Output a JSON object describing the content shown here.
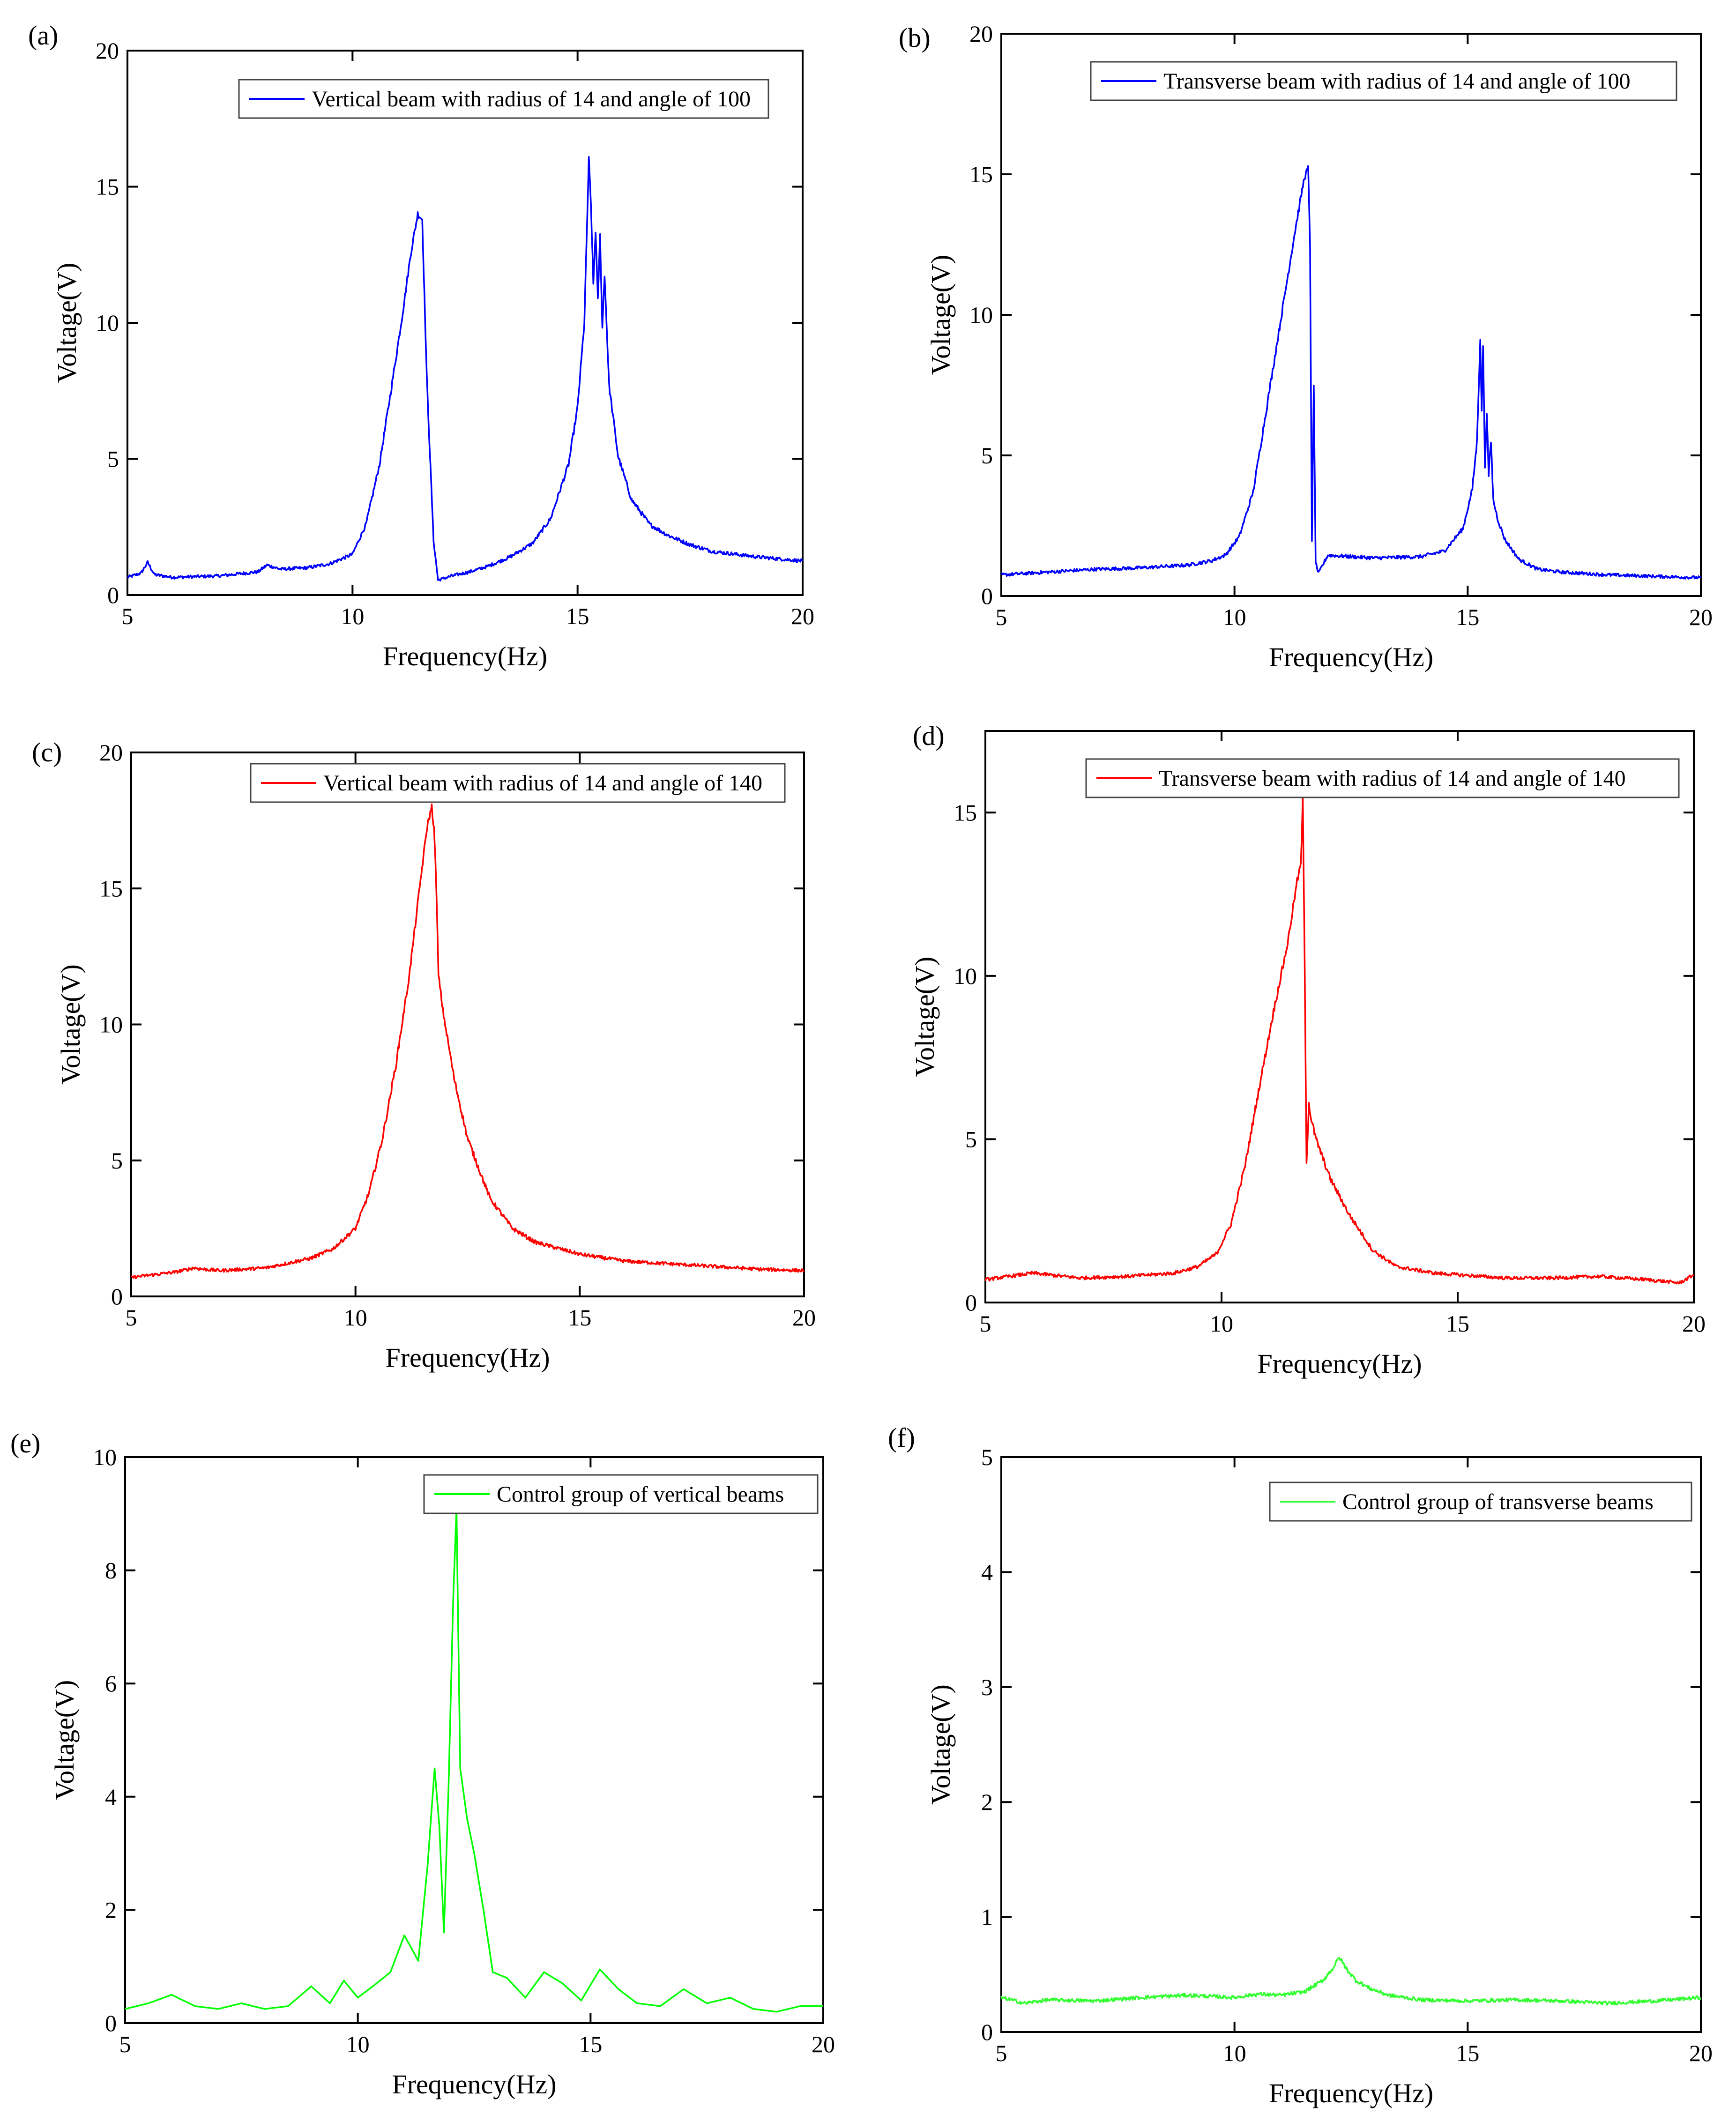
{
  "chart_data": [
    {
      "type": "line",
      "panel_label": "(a)",
      "legend": "Vertical beam with radius of 14 and angle of 100",
      "color": "#0000ff",
      "xlabel": "Frequency(Hz)",
      "ylabel": "Voltage(V)",
      "xlim": [
        5,
        20
      ],
      "ylim": [
        0,
        20
      ],
      "xticks": [
        "5",
        "10",
        "15",
        "20"
      ],
      "yticks": [
        "0",
        "5",
        "10",
        "15",
        "20"
      ],
      "series": [
        {
          "name": "Vertical beam with radius of 14 and angle of 100",
          "x": [
            5,
            5.3,
            5.45,
            5.6,
            6,
            7,
            7.9,
            8.1,
            8.4,
            9,
            9.5,
            10,
            10.3,
            10.6,
            10.9,
            11.1,
            11.3,
            11.45,
            11.55,
            11.65,
            11.8,
            11.9,
            12.2,
            12.6,
            13,
            13.5,
            14,
            14.4,
            14.8,
            15,
            15.15,
            15.25,
            15.3,
            15.35,
            15.4,
            15.45,
            15.5,
            15.55,
            15.6,
            15.7,
            15.9,
            16.2,
            16.6,
            17,
            17.5,
            18,
            19,
            20
          ],
          "y": [
            0.65,
            0.8,
            1.2,
            0.75,
            0.65,
            0.7,
            0.85,
            1.1,
            0.95,
            1.0,
            1.15,
            1.5,
            2.6,
            4.8,
            8.0,
            10.2,
            12.6,
            14.0,
            13.8,
            8.0,
            2.0,
            0.55,
            0.7,
            0.85,
            1.05,
            1.4,
            1.9,
            2.8,
            4.8,
            6.9,
            10.0,
            16.0,
            14.2,
            11.4,
            13.4,
            10.8,
            13.2,
            9.8,
            11.8,
            7.7,
            5.1,
            3.5,
            2.6,
            2.2,
            1.85,
            1.6,
            1.4,
            1.25
          ]
        }
      ]
    },
    {
      "type": "line",
      "panel_label": "(b)",
      "legend": "Transverse beam with radius of 14 and angle of 100",
      "color": "#0000ff",
      "xlabel": "Frequency(Hz)",
      "ylabel": "Voltage(V)",
      "xlim": [
        5,
        20
      ],
      "ylim": [
        0,
        20
      ],
      "xticks": [
        "5",
        "10",
        "15",
        "20"
      ],
      "yticks": [
        "0",
        "5",
        "10",
        "15",
        "20"
      ],
      "series": [
        {
          "name": "Transverse beam with radius of 14 and angle of 100",
          "x": [
            5,
            6,
            7,
            8,
            9,
            9.5,
            9.8,
            10.1,
            10.4,
            10.7,
            11.0,
            11.3,
            11.5,
            11.58,
            11.62,
            11.66,
            11.7,
            11.74,
            11.8,
            12.0,
            12.5,
            13,
            14,
            14.5,
            14.9,
            15.1,
            15.2,
            15.27,
            15.3,
            15.33,
            15.37,
            15.41,
            15.45,
            15.5,
            15.55,
            15.65,
            15.8,
            16.1,
            16.5,
            17,
            18,
            19,
            20
          ],
          "y": [
            0.75,
            0.85,
            0.95,
            1.0,
            1.1,
            1.25,
            1.45,
            2.1,
            3.7,
            6.8,
            9.9,
            13.0,
            14.9,
            15.2,
            12.5,
            2.0,
            7.4,
            1.2,
            0.8,
            1.45,
            1.4,
            1.35,
            1.4,
            1.6,
            2.4,
            3.8,
            5.5,
            9.2,
            6.5,
            8.9,
            4.6,
            6.6,
            4.3,
            5.5,
            3.4,
            2.7,
            2.0,
            1.3,
            0.95,
            0.85,
            0.75,
            0.7,
            0.65
          ]
        }
      ]
    },
    {
      "type": "line",
      "panel_label": "(c)",
      "legend": "Vertical beam with radius of 14 and angle of 140",
      "color": "#ff0000",
      "xlabel": "Frequency(Hz)",
      "ylabel": "Voltage(V)",
      "xlim": [
        5,
        20
      ],
      "ylim": [
        0,
        20
      ],
      "xticks": [
        "5",
        "10",
        "15",
        "20"
      ],
      "yticks": [
        "0",
        "5",
        "10",
        "15",
        "20"
      ],
      "series": [
        {
          "name": "Vertical beam with radius of 14 and angle of 140",
          "x": [
            5,
            5.5,
            6,
            6.4,
            6.6,
            7,
            8,
            9,
            9.5,
            10,
            10.3,
            10.6,
            10.9,
            11.2,
            11.45,
            11.6,
            11.7,
            11.75,
            11.8,
            11.85,
            11.95,
            12.2,
            12.5,
            13,
            13.5,
            14,
            15,
            16,
            17,
            18,
            19,
            20
          ],
          "y": [
            0.7,
            0.8,
            0.9,
            1.05,
            1.0,
            0.95,
            1.05,
            1.4,
            1.75,
            2.5,
            3.8,
            5.8,
            8.5,
            11.8,
            15.3,
            17.3,
            18.0,
            17.2,
            15.2,
            11.8,
            10.5,
            8.0,
            5.8,
            3.6,
            2.5,
            2.0,
            1.55,
            1.3,
            1.2,
            1.1,
            1.0,
            0.95
          ]
        }
      ]
    },
    {
      "type": "line",
      "panel_label": "(d)",
      "legend": "Transverse beam with radius of 14 and angle of 140",
      "color": "#ff0000",
      "xlabel": "Frequency(Hz)",
      "ylabel": "Voltage(V)",
      "xlim": [
        5,
        20
      ],
      "ylim": [
        0,
        17.5
      ],
      "xticks": [
        "5",
        "10",
        "15",
        "20"
      ],
      "yticks": [
        "0",
        "5",
        "10",
        "15"
      ],
      "series": [
        {
          "name": "Transverse beam with radius of 14 and angle of 140",
          "x": [
            5,
            5.5,
            6,
            7,
            8,
            9,
            9.5,
            9.9,
            10.2,
            10.5,
            10.8,
            11.1,
            11.4,
            11.6,
            11.68,
            11.72,
            11.76,
            11.8,
            11.85,
            11.9,
            12.0,
            12.3,
            12.7,
            13.2,
            13.7,
            14.5,
            15,
            16,
            17,
            18,
            19,
            19.7,
            20
          ],
          "y": [
            0.7,
            0.8,
            0.9,
            0.75,
            0.8,
            0.9,
            1.1,
            1.5,
            2.4,
            4.2,
            6.6,
            8.9,
            11.0,
            12.9,
            13.4,
            15.4,
            10.5,
            4.3,
            6.1,
            5.6,
            5.0,
            3.8,
            2.7,
            1.6,
            1.1,
            0.9,
            0.85,
            0.75,
            0.75,
            0.8,
            0.7,
            0.6,
            0.85
          ]
        }
      ]
    },
    {
      "type": "line",
      "panel_label": "(e)",
      "legend": "Control group of vertical beams",
      "color": "#00ff00",
      "xlabel": "Frequency(Hz)",
      "ylabel": "Voltage(V)",
      "xlim": [
        5,
        20
      ],
      "ylim": [
        0,
        10
      ],
      "xticks": [
        "5",
        "10",
        "15",
        "20"
      ],
      "yticks": [
        "0",
        "2",
        "4",
        "6",
        "8",
        "10"
      ],
      "series": [
        {
          "name": "Control group of vertical beams",
          "x": [
            5,
            5.5,
            6.0,
            6.5,
            7.0,
            7.5,
            8.0,
            8.5,
            9.0,
            9.4,
            9.7,
            10.0,
            10.4,
            10.7,
            11.0,
            11.3,
            11.5,
            11.65,
            11.75,
            11.85,
            11.95,
            12.05,
            12.12,
            12.2,
            12.35,
            12.5,
            12.7,
            12.9,
            13.2,
            13.6,
            14.0,
            14.4,
            14.8,
            15.2,
            15.6,
            16.0,
            16.5,
            17.0,
            17.5,
            18.0,
            18.5,
            19.0,
            19.5,
            20.0
          ],
          "y": [
            0.25,
            0.35,
            0.5,
            0.3,
            0.25,
            0.35,
            0.25,
            0.3,
            0.65,
            0.35,
            0.75,
            0.45,
            0.7,
            0.9,
            1.55,
            1.1,
            2.8,
            4.5,
            3.5,
            1.6,
            4.2,
            7.5,
            9.1,
            4.5,
            3.6,
            3.0,
            2.0,
            0.9,
            0.8,
            0.45,
            0.9,
            0.7,
            0.4,
            0.95,
            0.6,
            0.35,
            0.3,
            0.6,
            0.35,
            0.45,
            0.25,
            0.2,
            0.3,
            0.3
          ]
        }
      ]
    },
    {
      "type": "line",
      "panel_label": "(f)",
      "legend": "Control group of transverse beams",
      "color": "#33ff33",
      "xlabel": "Frequency(Hz)",
      "ylabel": "Voltage(V)",
      "xlim": [
        5,
        20
      ],
      "ylim": [
        0,
        5
      ],
      "xticks": [
        "5",
        "10",
        "15",
        "20"
      ],
      "yticks": [
        "0",
        "1",
        "2",
        "3",
        "4",
        "5"
      ],
      "series": [
        {
          "name": "Control group of transverse beams",
          "x": [
            5,
            5.5,
            6,
            7,
            8,
            9,
            10,
            10.5,
            11,
            11.5,
            11.9,
            12.1,
            12.25,
            12.4,
            12.6,
            12.9,
            13.3,
            14,
            15,
            16,
            17,
            18,
            19,
            20
          ],
          "y": [
            0.3,
            0.25,
            0.28,
            0.27,
            0.3,
            0.32,
            0.3,
            0.33,
            0.32,
            0.35,
            0.45,
            0.55,
            0.65,
            0.55,
            0.45,
            0.38,
            0.32,
            0.28,
            0.27,
            0.28,
            0.27,
            0.25,
            0.27,
            0.3
          ]
        }
      ]
    }
  ]
}
